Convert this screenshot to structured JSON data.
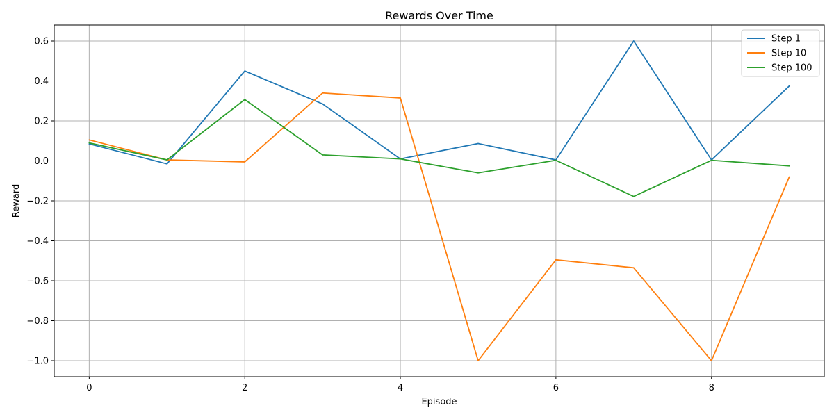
{
  "chart_data": {
    "type": "line",
    "title": "Rewards Over Time",
    "xlabel": "Episode",
    "ylabel": "Reward",
    "x": [
      0,
      1,
      2,
      3,
      4,
      5,
      6,
      7,
      8,
      9
    ],
    "xlim": [
      -0.45,
      9.45
    ],
    "ylim": [
      -1.08,
      0.68
    ],
    "xticks": [
      0,
      2,
      4,
      6,
      8
    ],
    "xtick_labels": [
      "0",
      "2",
      "4",
      "6",
      "8"
    ],
    "yticks": [
      -1.0,
      -0.8,
      -0.6,
      -0.4,
      -0.2,
      0.0,
      0.2,
      0.4,
      0.6
    ],
    "ytick_labels": [
      "−1.0",
      "−0.8",
      "−0.6",
      "−0.4",
      "−0.2",
      "0.0",
      "0.2",
      "0.4",
      "0.6"
    ],
    "grid": true,
    "legend_position": "top-right",
    "series": [
      {
        "name": "Step 1",
        "color": "#1f77b4",
        "values": [
          0.085,
          -0.015,
          0.45,
          0.285,
          0.01,
          0.087,
          0.005,
          0.6,
          0.005,
          0.375
        ]
      },
      {
        "name": "Step 10",
        "color": "#ff7f0e",
        "values": [
          0.105,
          0.005,
          -0.005,
          0.34,
          0.315,
          -1.0,
          -0.495,
          -0.535,
          -1.0,
          -0.08
        ]
      },
      {
        "name": "Step 100",
        "color": "#2ca02c",
        "values": [
          0.09,
          0.005,
          0.307,
          0.03,
          0.01,
          -0.06,
          0.003,
          -0.178,
          0.003,
          -0.025
        ]
      }
    ]
  }
}
